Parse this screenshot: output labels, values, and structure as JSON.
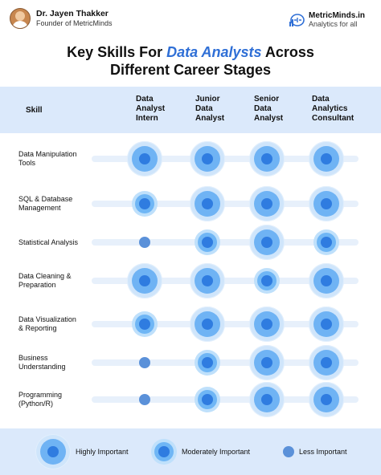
{
  "header": {
    "author_name": "Dr. Jayen Thakker",
    "author_role": "Founder of MetricMinds",
    "brand_name": "MetricMinds.in",
    "brand_tagline": "Analytics for all"
  },
  "title": {
    "line1_pre": "Key Skills For ",
    "line1_highlight": "Data Analysts",
    "line1_post": " Across",
    "line2": "Different Career Stages"
  },
  "columns": {
    "skill": "Skill",
    "stages": [
      [
        "Data",
        "Analyst",
        "Intern"
      ],
      [
        "Junior",
        "Data",
        "Analyst"
      ],
      [
        "Senior",
        "Data",
        "Analyst"
      ],
      [
        "Data",
        "Analytics",
        "Consultant"
      ]
    ]
  },
  "rows": [
    {
      "label": [
        "Data Manipulation",
        "Tools"
      ],
      "levels": [
        "high",
        "high",
        "high",
        "high"
      ]
    },
    {
      "label": [
        "SQL & Database",
        "Management"
      ],
      "levels": [
        "moderate",
        "high",
        "high",
        "high"
      ]
    },
    {
      "label": [
        "Statistical Analysis"
      ],
      "levels": [
        "less",
        "moderate",
        "high",
        "moderate"
      ]
    },
    {
      "label": [
        "Data Cleaning &",
        "Preparation"
      ],
      "levels": [
        "high",
        "high",
        "moderate",
        "high"
      ]
    },
    {
      "label": [
        "Data Visualization",
        "& Reporting"
      ],
      "levels": [
        "moderate",
        "high",
        "high",
        "high"
      ]
    },
    {
      "label": [
        "Business",
        "Understanding"
      ],
      "levels": [
        "less",
        "moderate",
        "high",
        "high"
      ]
    },
    {
      "label": [
        "Programming",
        "(Python/R)"
      ],
      "levels": [
        "less",
        "moderate",
        "high",
        "high"
      ]
    }
  ],
  "legend": {
    "high": "Highly Important",
    "moderate": "Moderately Important",
    "less": "Less Important"
  },
  "colors": {
    "accent": "#2f6fd6",
    "header_band": "#dbe9fb",
    "dot_core": "#2f7ce0"
  }
}
